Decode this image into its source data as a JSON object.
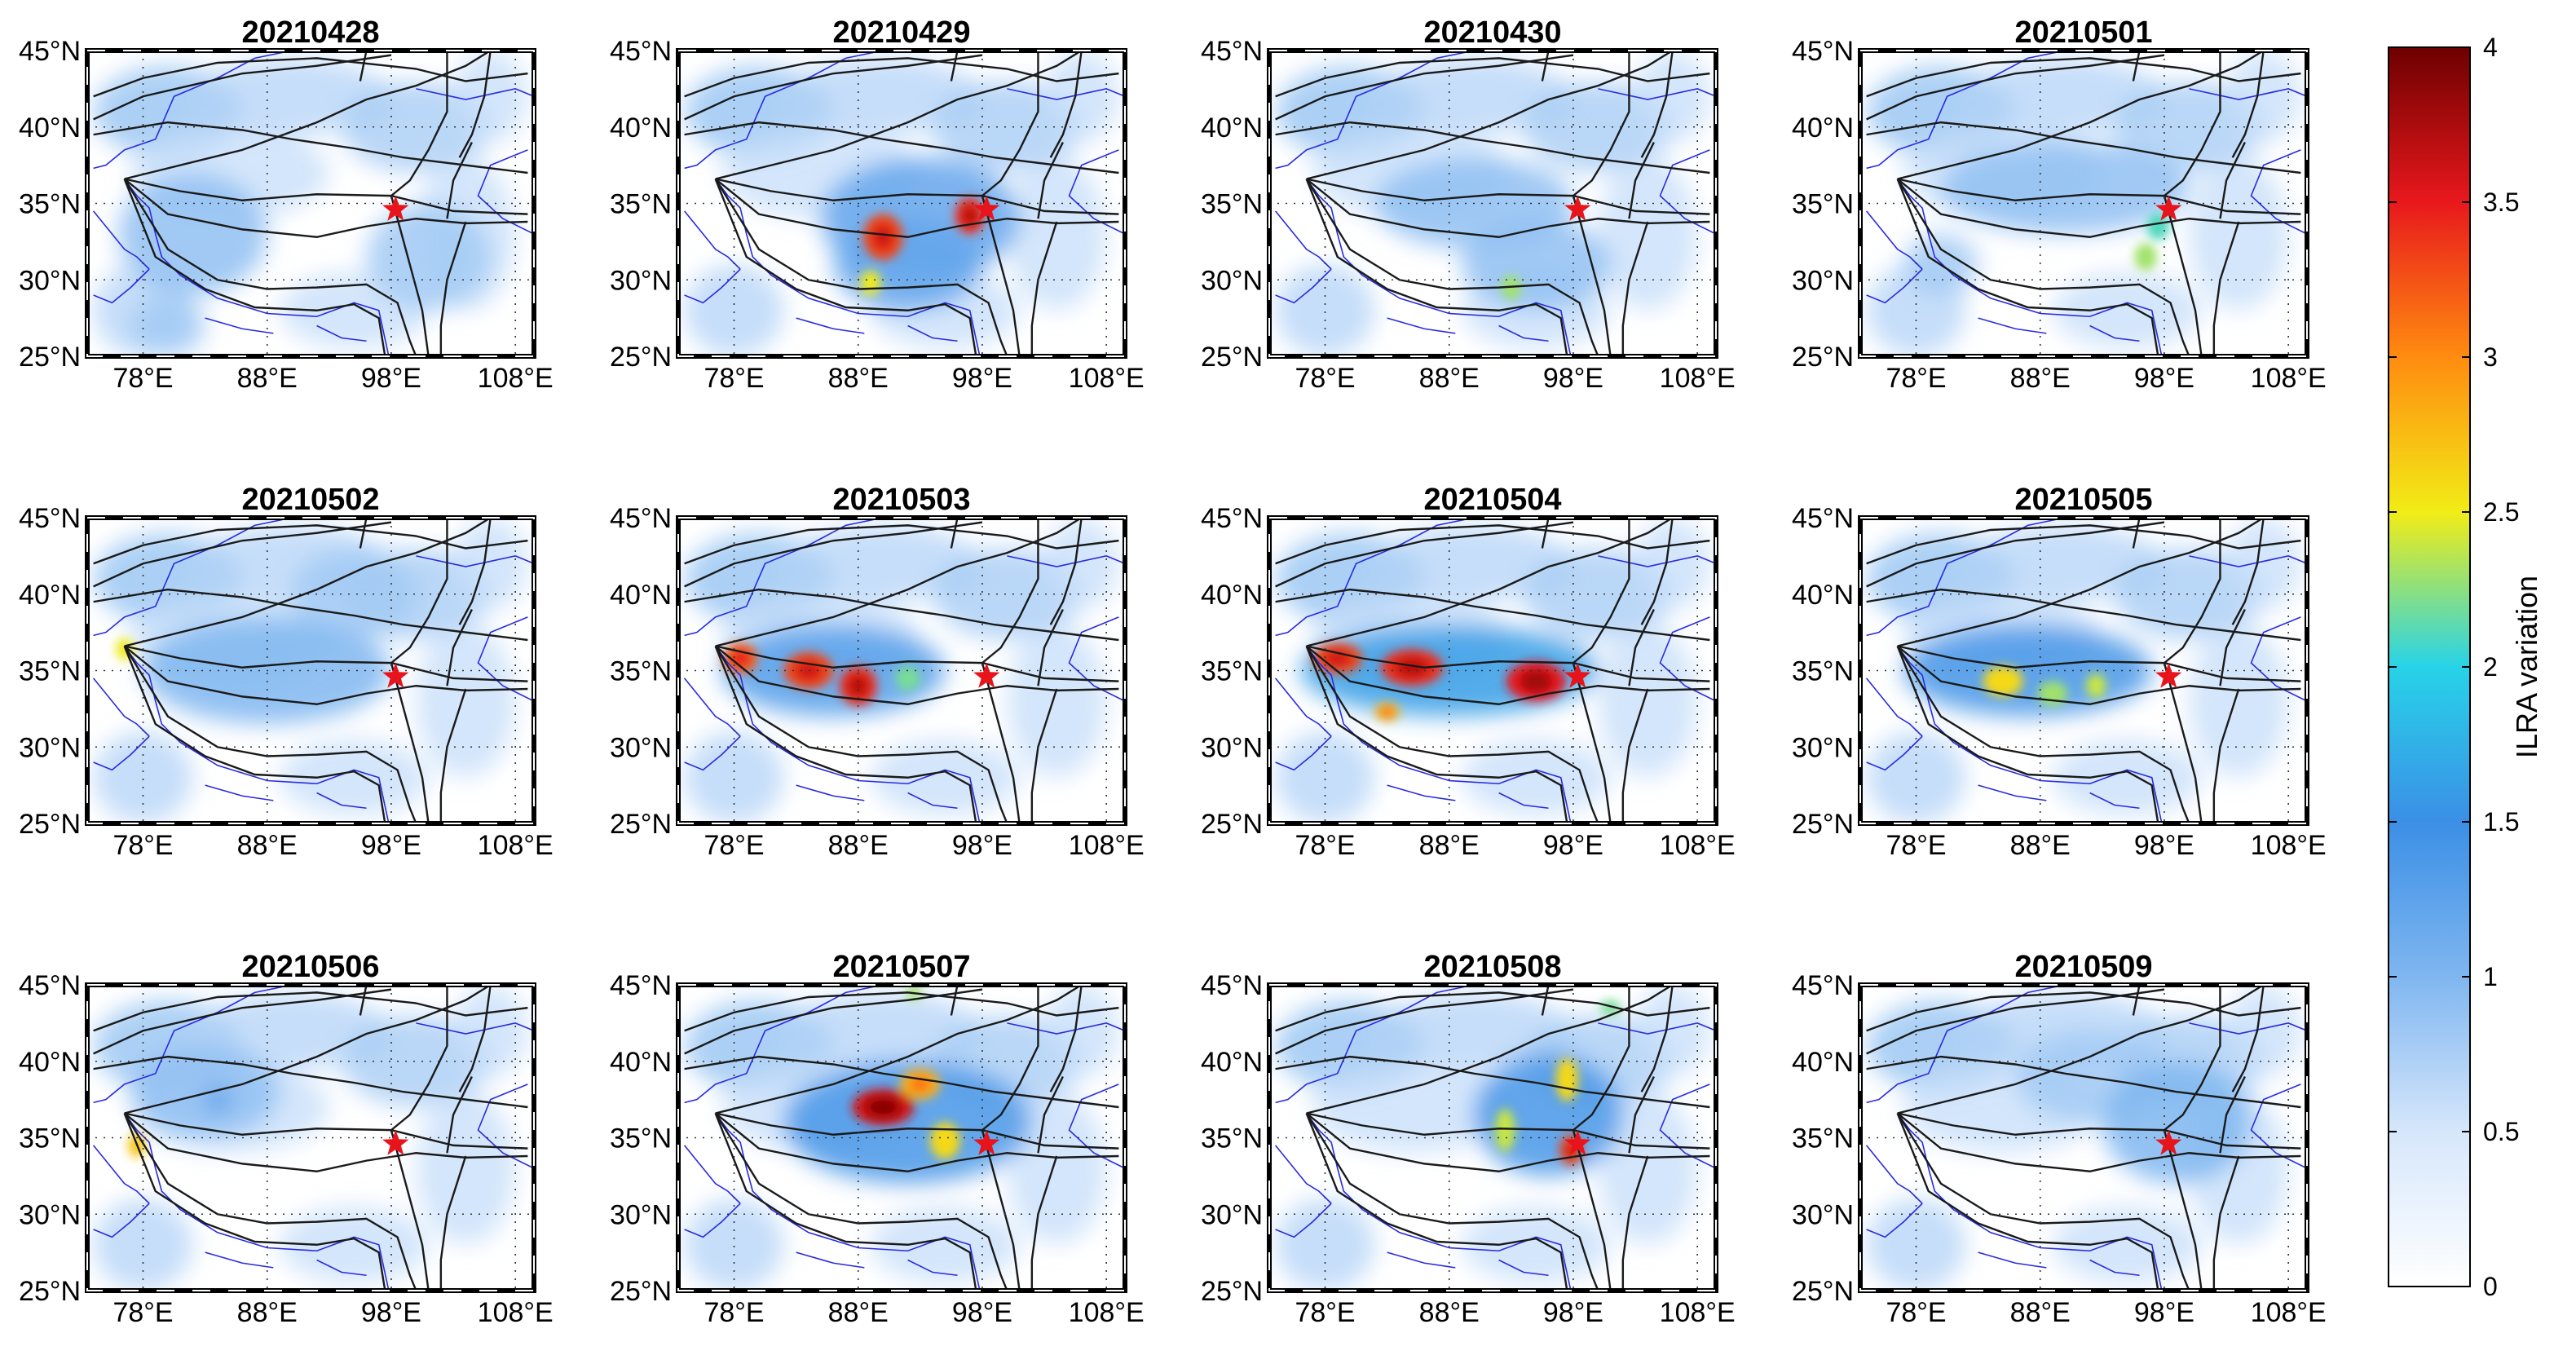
{
  "figure": {
    "panels": [
      {
        "title": "20210428",
        "hotspots": [
          [
            101,
            31.5,
            0.8,
            5,
            3.5
          ],
          [
            82,
            33,
            0.9,
            6,
            4
          ],
          [
            80,
            27,
            0.8,
            3,
            2
          ]
        ]
      },
      {
        "title": "20210429",
        "hotspots": [
          [
            90,
            32.8,
            3.3,
            1.6,
            1.5
          ],
          [
            97,
            34.2,
            3.4,
            1.2,
            1.2
          ],
          [
            89,
            29.8,
            2.5,
            0.8,
            0.8
          ],
          [
            93,
            34,
            1.2,
            8,
            4
          ],
          [
            92,
            31,
            1.2,
            6,
            3
          ]
        ]
      },
      {
        "title": "20210430",
        "hotspots": [
          [
            93,
            29.5,
            2.3,
            0.8,
            0.8
          ],
          [
            90,
            35,
            0.9,
            8,
            3
          ],
          [
            95,
            31,
            0.9,
            6,
            3
          ]
        ]
      },
      {
        "title": "20210501",
        "hotspots": [
          [
            96.5,
            31.5,
            2.3,
            0.9,
            0.9
          ],
          [
            97.5,
            33.5,
            2.1,
            0.9,
            0.9
          ],
          [
            90,
            36,
            0.9,
            10,
            3
          ],
          [
            80,
            31,
            0.8,
            3,
            2
          ]
        ]
      },
      {
        "title": "20210502",
        "hotspots": [
          [
            76.5,
            36.4,
            2.5,
            0.7,
            0.7
          ],
          [
            88,
            35,
            1.0,
            10,
            3.5
          ],
          [
            95,
            40,
            0.8,
            5,
            3
          ]
        ]
      },
      {
        "title": "20210503",
        "hotspots": [
          [
            78.5,
            35.8,
            3.2,
            1.4,
            1.0
          ],
          [
            84,
            35,
            3.3,
            2.0,
            1.2
          ],
          [
            88,
            34,
            3.4,
            1.5,
            1.3
          ],
          [
            92,
            34.5,
            2.2,
            1.0,
            0.8
          ],
          [
            86,
            35,
            1.3,
            9,
            3
          ]
        ]
      },
      {
        "title": "20210504",
        "hotspots": [
          [
            79,
            35.8,
            3.3,
            2.0,
            1.0
          ],
          [
            85,
            35.2,
            3.4,
            2.5,
            1.2
          ],
          [
            95,
            34.3,
            3.5,
            2.4,
            1.3
          ],
          [
            83,
            32.3,
            2.8,
            1.0,
            0.6
          ],
          [
            88,
            35,
            1.6,
            12,
            3
          ]
        ]
      },
      {
        "title": "20210505",
        "hotspots": [
          [
            85,
            34.3,
            2.6,
            1.6,
            1.0
          ],
          [
            89,
            33.5,
            2.3,
            1.2,
            0.8
          ],
          [
            92.5,
            34,
            2.4,
            0.8,
            0.8
          ],
          [
            87,
            35,
            1.4,
            10,
            3
          ]
        ]
      },
      {
        "title": "20210506",
        "hotspots": [
          [
            77.5,
            34.5,
            2.7,
            0.7,
            0.8
          ],
          [
            84,
            37.5,
            1.4,
            1.0,
            0.8
          ],
          [
            83,
            38,
            0.9,
            6,
            3
          ]
        ]
      },
      {
        "title": "20210507",
        "hotspots": [
          [
            90,
            37,
            3.6,
            2.5,
            1.2
          ],
          [
            93,
            38.5,
            2.8,
            1.6,
            1.0
          ],
          [
            95,
            34.8,
            2.6,
            1.2,
            1.2
          ],
          [
            92,
            36,
            1.4,
            10,
            4
          ],
          [
            92.5,
            44.5,
            2.3,
            0.6,
            0.5
          ]
        ]
      },
      {
        "title": "20210508",
        "hotspots": [
          [
            97.8,
            34.2,
            3.3,
            0.9,
            1.0
          ],
          [
            97.5,
            38.8,
            2.6,
            0.9,
            1.4
          ],
          [
            92.5,
            35.5,
            2.4,
            0.8,
            1.4
          ],
          [
            101,
            43.5,
            2.2,
            0.8,
            0.5
          ],
          [
            96,
            36.5,
            1.4,
            6,
            4
          ]
        ]
      },
      {
        "title": "20210509",
        "hotspots": [
          [
            99,
            36,
            1.0,
            6,
            4
          ],
          [
            92,
            39,
            0.8,
            6,
            3
          ]
        ]
      }
    ],
    "star": {
      "lon": 98.35,
      "lat": 34.6
    },
    "lon_ticks": [
      "78°E",
      "88°E",
      "98°E",
      "108°E"
    ],
    "lon_values": [
      78,
      88,
      98,
      108
    ],
    "lat_ticks": [
      "25°N",
      "30°N",
      "35°N",
      "40°N",
      "45°N"
    ],
    "lat_values": [
      25,
      30,
      35,
      40,
      45
    ],
    "extent": {
      "lon": [
        73.5,
        109.5
      ],
      "lat": [
        25,
        45
      ]
    },
    "colorbar": {
      "label": "ILRA variation",
      "ticks": [
        "0",
        "0.5",
        "1",
        "1.5",
        "2",
        "2.5",
        "3",
        "3.5",
        "4"
      ],
      "tick_values": [
        0,
        0.5,
        1,
        1.5,
        2,
        2.5,
        3,
        3.5,
        4
      ],
      "range": [
        0,
        4
      ]
    },
    "colors": {
      "star": "#e8141c",
      "fault": "#1a1a1a",
      "border": "#2a2ae0",
      "cmap": [
        "#ffffff",
        "#d6e7fb",
        "#7fb6f0",
        "#3b8fe6",
        "#27d3e8",
        "#f2ec16",
        "#ff8c10",
        "#e8181c",
        "#6e0000"
      ]
    }
  }
}
